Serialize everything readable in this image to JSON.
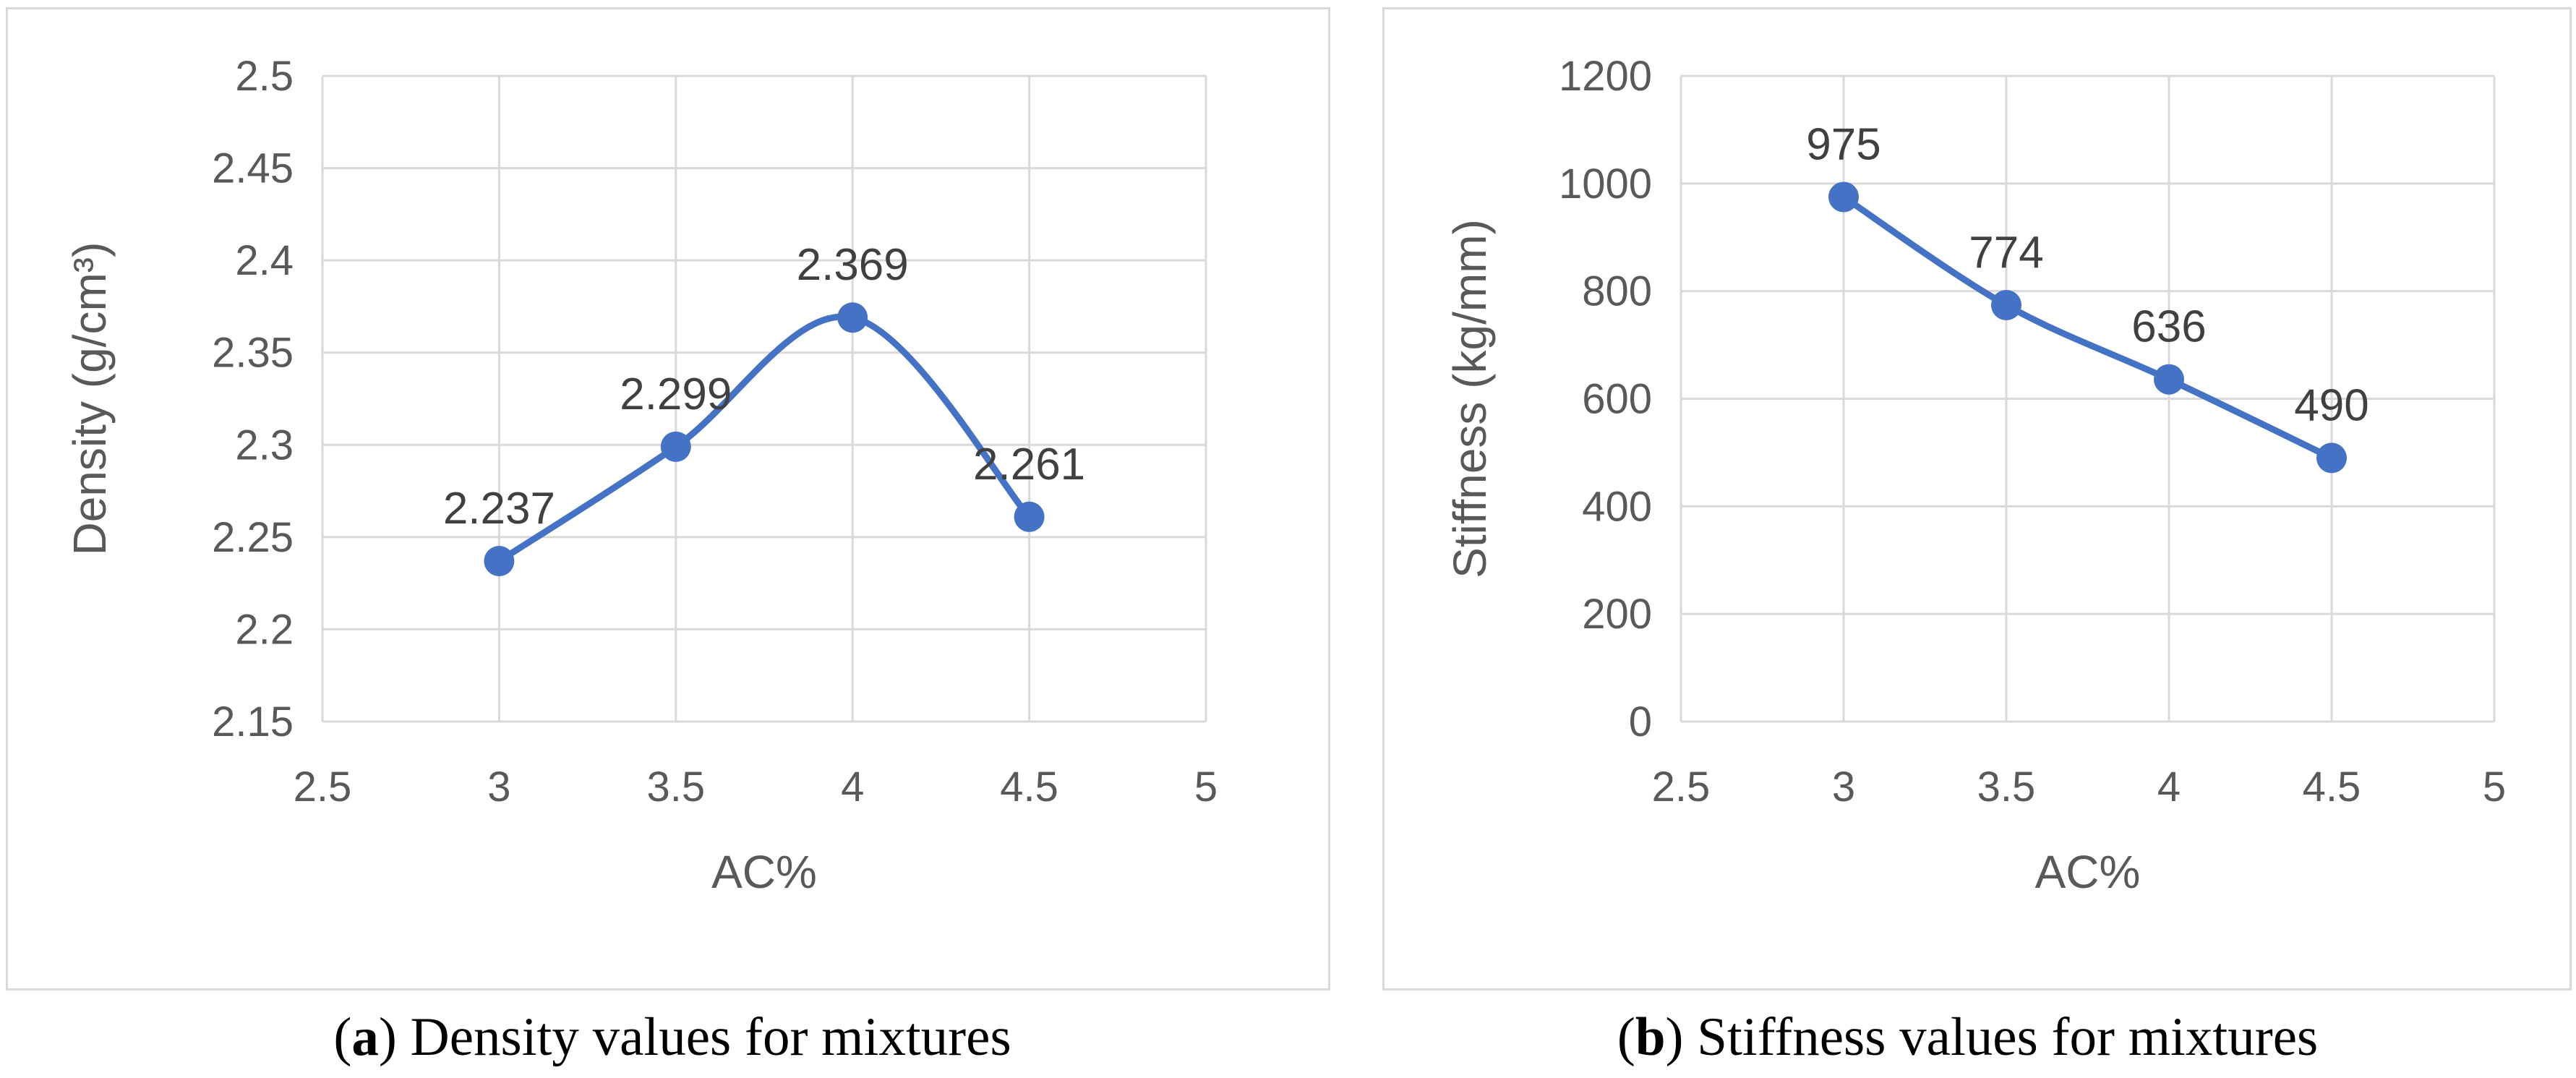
{
  "chart_data": [
    {
      "type": "line",
      "caption_letter": "a",
      "caption_text": ") Density values for mixtures",
      "x": [
        3,
        3.5,
        4,
        4.5
      ],
      "series": [
        {
          "values": [
            2.237,
            2.299,
            2.369,
            2.261
          ],
          "data_labels": [
            "2.237",
            "2.299",
            "2.369",
            "2.261"
          ],
          "color": "#4472c4"
        }
      ],
      "xlabel": "AC%",
      "ylabel": "Density (g/cm³)",
      "xlim": [
        2.5,
        5
      ],
      "ylim": [
        2.15,
        2.5
      ],
      "xticks": [
        "2.5",
        "3",
        "3.5",
        "4",
        "4.5",
        "5"
      ],
      "yticks": [
        "2.15",
        "2.2",
        "2.25",
        "2.3",
        "2.35",
        "2.4",
        "2.45",
        "2.5"
      ],
      "smooth": true,
      "grid": true,
      "legend": "none"
    },
    {
      "type": "line",
      "caption_letter": "b",
      "caption_text": ") Stiffness values for mixtures",
      "x": [
        3,
        3.5,
        4,
        4.5
      ],
      "series": [
        {
          "values": [
            975,
            774,
            636,
            490
          ],
          "data_labels": [
            "975",
            "774",
            "636",
            "490"
          ],
          "color": "#4472c4"
        }
      ],
      "xlabel": "AC%",
      "ylabel": "Stiffness (kg/mm)",
      "xlim": [
        2.5,
        5
      ],
      "ylim": [
        0,
        1200
      ],
      "xticks": [
        "2.5",
        "3",
        "3.5",
        "4",
        "4.5",
        "5"
      ],
      "yticks": [
        "0",
        "200",
        "400",
        "600",
        "800",
        "1000",
        "1200"
      ],
      "smooth": true,
      "grid": true,
      "legend": "none"
    }
  ]
}
